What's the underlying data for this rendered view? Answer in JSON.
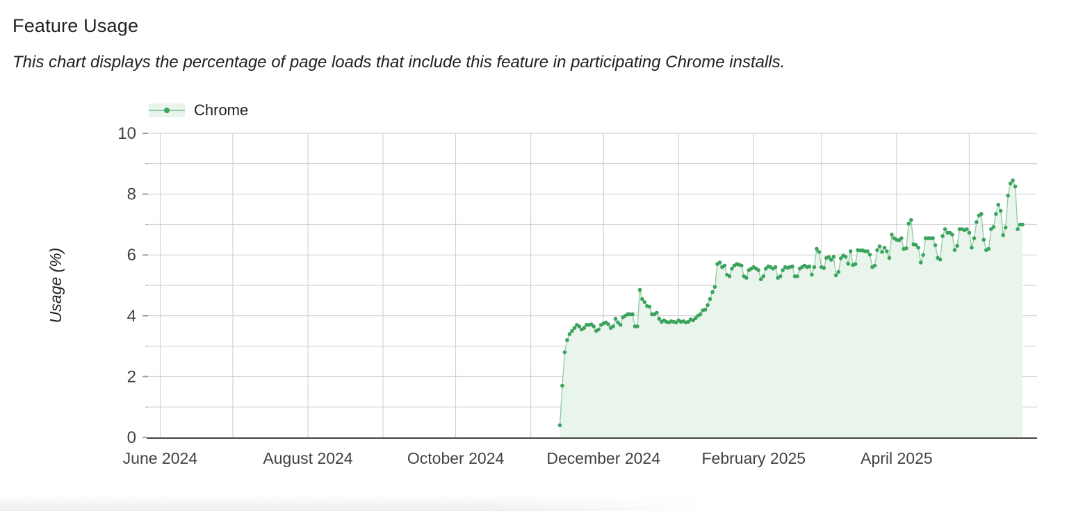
{
  "header": {
    "title": "Feature Usage",
    "subtitle": "This chart displays the percentage of page loads that include this feature in participating Chrome installs."
  },
  "chart_data": {
    "type": "area",
    "title": "Feature Usage",
    "ylabel": "Usage (%)",
    "xlabel": "",
    "ylim": [
      0,
      10
    ],
    "y_major_ticks": [
      0,
      2,
      4,
      6,
      8,
      10
    ],
    "y_minor_ticks": [
      1,
      3,
      5,
      7,
      9
    ],
    "grid": "on",
    "legend_position": "top-left",
    "x_axis": {
      "domain_start": "2024-05-27",
      "domain_end": "2025-05-29",
      "month_gridlines": [
        "2024-06-01",
        "2024-07-01",
        "2024-08-01",
        "2024-09-01",
        "2024-10-01",
        "2024-11-01",
        "2024-12-01",
        "2025-01-01",
        "2025-02-01",
        "2025-03-01",
        "2025-04-01",
        "2025-05-01"
      ],
      "labels": [
        {
          "date": "2024-06-01",
          "text": "June 2024"
        },
        {
          "date": "2024-08-01",
          "text": "August 2024"
        },
        {
          "date": "2024-10-01",
          "text": "October 2024"
        },
        {
          "date": "2024-12-01",
          "text": "December 2024"
        },
        {
          "date": "2025-02-01",
          "text": "February 2025"
        },
        {
          "date": "2025-04-01",
          "text": "April 2025"
        }
      ]
    },
    "series": [
      {
        "name": "Chrome",
        "start_date": "2024-11-13",
        "interval": "daily",
        "values": [
          0.4,
          1.7,
          2.8,
          3.2,
          3.4,
          3.5,
          3.6,
          3.7,
          3.65,
          3.55,
          3.6,
          3.7,
          3.7,
          3.72,
          3.65,
          3.5,
          3.55,
          3.7,
          3.75,
          3.78,
          3.72,
          3.6,
          3.65,
          3.9,
          3.78,
          3.7,
          3.95,
          4.0,
          4.05,
          4.05,
          4.05,
          3.65,
          3.65,
          4.85,
          4.55,
          4.45,
          4.32,
          4.3,
          4.05,
          4.05,
          4.1,
          3.9,
          3.8,
          3.85,
          3.8,
          3.78,
          3.82,
          3.8,
          3.78,
          3.85,
          3.8,
          3.82,
          3.78,
          3.8,
          3.88,
          3.85,
          3.92,
          4.0,
          4.05,
          4.18,
          4.2,
          4.35,
          4.55,
          4.78,
          4.95,
          5.7,
          5.75,
          5.6,
          5.65,
          5.35,
          5.3,
          5.55,
          5.65,
          5.7,
          5.68,
          5.65,
          5.3,
          5.25,
          5.5,
          5.55,
          5.6,
          5.55,
          5.5,
          5.2,
          5.3,
          5.55,
          5.62,
          5.6,
          5.55,
          5.6,
          5.25,
          5.3,
          5.5,
          5.6,
          5.58,
          5.6,
          5.62,
          5.3,
          5.3,
          5.55,
          5.6,
          5.65,
          5.6,
          5.62,
          5.35,
          5.6,
          6.2,
          6.1,
          5.6,
          5.57,
          5.9,
          5.93,
          5.84,
          5.94,
          5.33,
          5.44,
          5.89,
          5.98,
          5.94,
          5.71,
          6.12,
          5.67,
          5.7,
          6.16,
          6.15,
          6.15,
          6.12,
          6.12,
          6.01,
          5.6,
          5.65,
          6.16,
          6.28,
          6.1,
          6.24,
          6.12,
          5.9,
          6.67,
          6.55,
          6.5,
          6.48,
          6.55,
          6.2,
          6.22,
          7.03,
          7.15,
          6.35,
          6.33,
          6.24,
          5.75,
          6.0,
          6.55,
          6.55,
          6.55,
          6.55,
          6.32,
          5.9,
          5.85,
          6.62,
          6.85,
          6.73,
          6.73,
          6.67,
          6.16,
          6.3,
          6.85,
          6.85,
          6.82,
          6.85,
          6.73,
          6.24,
          6.55,
          7.08,
          7.3,
          7.35,
          6.5,
          6.16,
          6.2,
          6.85,
          6.92,
          7.35,
          7.65,
          7.45,
          6.65,
          6.9,
          7.95,
          8.35,
          8.45,
          8.25,
          6.85,
          7.0,
          7.0
        ]
      }
    ],
    "colors": {
      "point": "#3aa45c",
      "line": "#8fcb9f",
      "fill": "#e9f4ec",
      "grid": "#cccccc",
      "axis": "#424242",
      "tick": "#9aa0a6",
      "label_text": "#424242",
      "title_text": "#202124"
    }
  }
}
